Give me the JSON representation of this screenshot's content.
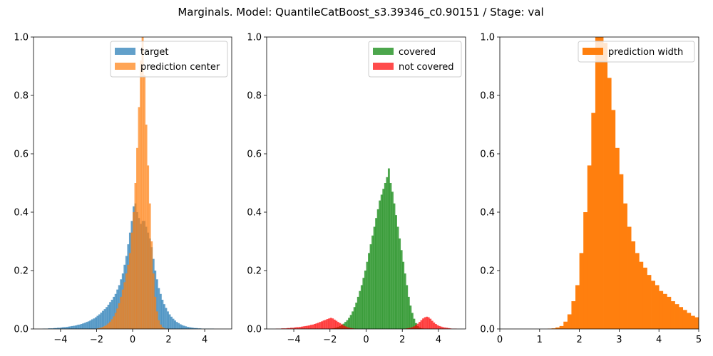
{
  "figure": {
    "suptitle": "Marginals. Model: QuantileCatBoost_s3.39346_c0.90151 / Stage: val"
  },
  "chart_data": [
    {
      "type": "histogram",
      "title": "",
      "xlabel": "",
      "ylabel": "",
      "xlim": [
        -5.5,
        5.5
      ],
      "ylim": [
        0,
        1.0
      ],
      "xticks": [
        -4,
        -2,
        0,
        2,
        4
      ],
      "yticks": [
        0.0,
        0.2,
        0.4,
        0.6,
        0.8,
        1.0
      ],
      "legend_position": "top-right",
      "grid": false,
      "series": [
        {
          "name": "target",
          "color": "#1f77b4",
          "opacity": 0.7,
          "bin_start": -5.0,
          "bin_width": 0.1,
          "values": [
            0.001,
            0.001,
            0.001,
            0.002,
            0.002,
            0.002,
            0.003,
            0.003,
            0.004,
            0.004,
            0.005,
            0.006,
            0.006,
            0.007,
            0.008,
            0.009,
            0.01,
            0.011,
            0.012,
            0.014,
            0.015,
            0.017,
            0.019,
            0.021,
            0.024,
            0.026,
            0.029,
            0.033,
            0.036,
            0.04,
            0.045,
            0.05,
            0.056,
            0.062,
            0.068,
            0.075,
            0.083,
            0.092,
            0.1,
            0.11,
            0.12,
            0.135,
            0.15,
            0.17,
            0.19,
            0.22,
            0.25,
            0.29,
            0.33,
            0.37,
            0.42,
            0.43,
            0.4,
            0.38,
            0.36,
            0.37,
            0.37,
            0.35,
            0.33,
            0.31,
            0.28,
            0.24,
            0.2,
            0.17,
            0.14,
            0.12,
            0.1,
            0.085,
            0.072,
            0.06,
            0.05,
            0.042,
            0.035,
            0.029,
            0.024,
            0.02,
            0.016,
            0.013,
            0.011,
            0.009,
            0.007,
            0.006,
            0.005,
            0.004,
            0.003,
            0.003,
            0.002,
            0.002,
            0.001,
            0.001,
            0.001,
            0.001,
            0.001,
            0.001,
            0.001,
            0.0,
            0.0,
            0.0,
            0.0,
            0.0
          ]
        },
        {
          "name": "prediction center",
          "color": "#ff7f0e",
          "opacity": 0.7,
          "bin_start": -2.0,
          "bin_width": 0.1,
          "values": [
            0.002,
            0.003,
            0.005,
            0.007,
            0.01,
            0.014,
            0.019,
            0.025,
            0.033,
            0.043,
            0.055,
            0.07,
            0.088,
            0.11,
            0.135,
            0.16,
            0.19,
            0.22,
            0.26,
            0.33,
            0.4,
            0.5,
            0.62,
            0.76,
            0.92,
            1.05,
            0.87,
            0.7,
            0.56,
            0.43,
            0.3,
            0.19,
            0.11,
            0.06,
            0.03,
            0.015,
            0.007,
            0.003,
            0.001,
            0.001
          ]
        }
      ]
    },
    {
      "type": "histogram",
      "title": "",
      "xlabel": "",
      "ylabel": "",
      "xlim": [
        -5.5,
        5.5
      ],
      "ylim": [
        0,
        1.0
      ],
      "xticks": [
        -4,
        -2,
        0,
        2,
        4
      ],
      "yticks": [
        0.0,
        0.2,
        0.4,
        0.6,
        0.8,
        1.0
      ],
      "legend_position": "top-right",
      "grid": false,
      "series": [
        {
          "name": "covered",
          "color": "#008000",
          "opacity": 0.7,
          "bin_start": -5.0,
          "bin_width": 0.1,
          "values": [
            0.0,
            0.0,
            0.0,
            0.0,
            0.0,
            0.0,
            0.0,
            0.0,
            0.0,
            0.0,
            0.0,
            0.0,
            0.0,
            0.0,
            0.0,
            0.0,
            0.0,
            0.0,
            0.0,
            0.0,
            0.0,
            0.0,
            0.0,
            0.0,
            0.0,
            0.0,
            0.0,
            0.0,
            0.0,
            0.0,
            0.001,
            0.002,
            0.003,
            0.005,
            0.007,
            0.01,
            0.014,
            0.018,
            0.024,
            0.03,
            0.038,
            0.048,
            0.06,
            0.075,
            0.09,
            0.11,
            0.13,
            0.15,
            0.175,
            0.2,
            0.23,
            0.26,
            0.29,
            0.32,
            0.35,
            0.38,
            0.41,
            0.44,
            0.46,
            0.48,
            0.5,
            0.52,
            0.55,
            0.5,
            0.47,
            0.43,
            0.39,
            0.35,
            0.31,
            0.27,
            0.23,
            0.19,
            0.15,
            0.11,
            0.08,
            0.055,
            0.035,
            0.02,
            0.01,
            0.005,
            0.002,
            0.001,
            0.0,
            0.0,
            0.0,
            0.0,
            0.0,
            0.0,
            0.0,
            0.0,
            0.0,
            0.0,
            0.0,
            0.0,
            0.0,
            0.0,
            0.0,
            0.0,
            0.0,
            0.0
          ]
        },
        {
          "name": "not covered",
          "color": "#ff0000",
          "opacity": 0.7,
          "bin_start": -5.0,
          "bin_width": 0.1,
          "values": [
            0.001,
            0.001,
            0.001,
            0.002,
            0.002,
            0.002,
            0.003,
            0.003,
            0.004,
            0.004,
            0.005,
            0.006,
            0.006,
            0.007,
            0.008,
            0.009,
            0.01,
            0.011,
            0.012,
            0.014,
            0.015,
            0.017,
            0.019,
            0.021,
            0.024,
            0.026,
            0.029,
            0.031,
            0.034,
            0.036,
            0.038,
            0.036,
            0.032,
            0.028,
            0.024,
            0.02,
            0.016,
            0.012,
            0.009,
            0.006,
            0.004,
            0.003,
            0.002,
            0.001,
            0.001,
            0.0,
            0.0,
            0.0,
            0.0,
            0.0,
            0.0,
            0.0,
            0.0,
            0.0,
            0.0,
            0.0,
            0.0,
            0.0,
            0.0,
            0.0,
            0.0,
            0.0,
            0.0,
            0.0,
            0.0,
            0.0,
            0.0,
            0.0,
            0.0,
            0.0,
            0.0,
            0.001,
            0.002,
            0.003,
            0.004,
            0.006,
            0.009,
            0.013,
            0.018,
            0.024,
            0.03,
            0.036,
            0.04,
            0.042,
            0.04,
            0.035,
            0.028,
            0.022,
            0.017,
            0.013,
            0.01,
            0.008,
            0.006,
            0.005,
            0.004,
            0.003,
            0.002,
            0.001,
            0.001,
            0.001
          ]
        }
      ]
    },
    {
      "type": "histogram",
      "title": "",
      "xlabel": "",
      "ylabel": "",
      "xlim": [
        0,
        5
      ],
      "ylim": [
        0,
        1.0
      ],
      "xticks": [
        0,
        1,
        2,
        3,
        4,
        5
      ],
      "yticks": [
        0.0,
        0.2,
        0.4,
        0.6,
        0.8,
        1.0
      ],
      "legend_position": "top-right",
      "grid": false,
      "series": [
        {
          "name": "prediction width",
          "color": "#ff7f0e",
          "opacity": 1.0,
          "bin_start": 0.0,
          "bin_width": 0.1,
          "values": [
            0.0,
            0.0,
            0.0,
            0.0,
            0.0,
            0.0,
            0.0,
            0.0,
            0.0,
            0.0,
            0.0,
            0.0,
            0.001,
            0.002,
            0.005,
            0.01,
            0.025,
            0.05,
            0.095,
            0.15,
            0.26,
            0.4,
            0.56,
            0.74,
            1.02,
            1.06,
            0.98,
            0.86,
            0.75,
            0.62,
            0.53,
            0.43,
            0.35,
            0.3,
            0.26,
            0.23,
            0.21,
            0.185,
            0.165,
            0.15,
            0.13,
            0.12,
            0.11,
            0.095,
            0.085,
            0.075,
            0.065,
            0.055,
            0.045,
            0.04,
            0.035
          ]
        }
      ]
    }
  ]
}
